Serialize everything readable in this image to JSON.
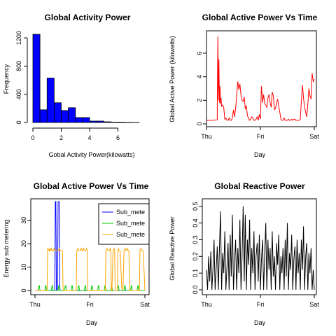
{
  "chart_data": [
    {
      "type": "bar",
      "title": "Global Activity Power",
      "xlabel": "Gobal Activity Power(kilowatts)",
      "ylabel": "Frequency",
      "xlim": [
        0,
        8
      ],
      "ylim": [
        0,
        1300
      ],
      "bin_width": 0.5,
      "bins_start": [
        0,
        0.5,
        1,
        1.5,
        2,
        2.5,
        3,
        3.5,
        4,
        4.5,
        5,
        5.5,
        6,
        6.5,
        7
      ],
      "values": [
        1250,
        180,
        630,
        280,
        170,
        210,
        70,
        70,
        20,
        20,
        10,
        5,
        5,
        3,
        2
      ],
      "x_ticks": [
        0,
        2,
        4,
        6
      ],
      "y_ticks": [
        0,
        400,
        800,
        1200
      ],
      "color": "#0000ff"
    },
    {
      "type": "line",
      "title": "Global Active Power Vs Time",
      "xlabel": "Day",
      "ylabel": "Global Active Power (kilowatts)",
      "x_tick_labels": [
        "Thu",
        "Fri",
        "Sat"
      ],
      "y_ticks": [
        0,
        2,
        4,
        6
      ],
      "ylim": [
        0,
        7.6
      ],
      "color": "#ff0000",
      "series": [
        {
          "x": [
            0.0,
            0.1,
            0.2,
            0.2,
            0.21,
            0.22,
            0.23,
            0.24,
            0.25,
            0.26,
            0.27,
            0.28,
            0.3,
            0.32,
            0.34,
            0.36,
            0.38,
            0.4,
            0.42,
            0.44,
            0.46,
            0.48,
            0.5,
            0.52,
            0.54,
            0.56,
            0.58,
            0.6,
            0.62,
            0.64,
            0.66,
            0.68,
            0.7,
            0.72,
            0.74,
            0.76,
            0.78,
            0.8,
            0.82,
            0.84,
            0.86,
            0.88,
            0.9,
            0.92,
            0.94,
            0.96,
            0.98,
            1.0,
            1.02,
            1.04,
            1.06,
            1.08,
            1.1,
            1.12,
            1.14,
            1.16,
            1.18,
            1.2,
            1.22,
            1.24,
            1.26,
            1.28,
            1.3,
            1.32,
            1.34,
            1.36,
            1.38,
            1.4,
            1.42,
            1.44,
            1.46,
            1.48,
            1.5,
            1.52,
            1.54,
            1.56,
            1.58,
            1.6,
            1.62,
            1.64,
            1.66,
            1.68,
            1.7,
            1.72,
            1.74,
            1.76,
            1.78,
            1.8,
            1.82,
            1.84,
            1.86,
            1.88,
            1.9,
            1.92,
            1.94,
            1.96,
            1.98,
            2.0
          ],
          "y": [
            0.3,
            0.3,
            0.35,
            1.5,
            7.4,
            2.0,
            5.5,
            1.8,
            3.2,
            1.7,
            2.2,
            1.5,
            1.6,
            1.4,
            0.4,
            0.5,
            0.3,
            0.3,
            0.5,
            0.3,
            0.3,
            0.5,
            1.2,
            0.6,
            1.3,
            2.4,
            3.6,
            2.9,
            3.4,
            2.4,
            2.0,
            1.9,
            2.3,
            1.3,
            1.5,
            0.7,
            0.5,
            0.3,
            0.4,
            0.6,
            0.5,
            0.3,
            0.3,
            0.4,
            0.6,
            0.3,
            0.8,
            0.4,
            3.2,
            1.8,
            2.5,
            1.7,
            1.6,
            1.4,
            2.2,
            2.5,
            1.8,
            1.4,
            2.7,
            2.4,
            1.2,
            1.3,
            1.8,
            2.1,
            1.5,
            1.0,
            0.4,
            0.3,
            0.3,
            0.5,
            0.3,
            0.3,
            0.3,
            0.4,
            0.3,
            0.3,
            0.4,
            0.3,
            0.4,
            0.4,
            0.3,
            0.3,
            0.3,
            0.3,
            0.4,
            1.9,
            3.3,
            2.2,
            1.4,
            1.0,
            0.6,
            1.7,
            3.0,
            2.4,
            2.1,
            4.3,
            3.6,
            3.8
          ]
        }
      ]
    },
    {
      "type": "line",
      "title": "Global Active Power Vs Time",
      "xlabel": "Day",
      "ylabel": "Energy sub metering",
      "x_tick_labels": [
        "Thu",
        "Fri",
        "Sat"
      ],
      "y_ticks": [
        0,
        10,
        20,
        30
      ],
      "ylim": [
        0,
        38
      ],
      "legend_position": "top-right",
      "series": [
        {
          "name": "Sub_mete",
          "color": "#0000ff",
          "x": [
            0.0,
            0.36,
            0.37,
            0.38,
            0.39,
            0.4,
            0.41,
            0.42,
            0.43,
            0.44,
            0.45,
            0.46,
            0.47,
            2.0
          ],
          "y": [
            0,
            0,
            38,
            38,
            0,
            0,
            1,
            38,
            38,
            38,
            1,
            0,
            0,
            0
          ]
        },
        {
          "name": "Sub_mete",
          "color": "#00cc00",
          "x": [
            0.0,
            0.06,
            0.07,
            0.08,
            0.09,
            0.18,
            0.19,
            0.2,
            0.21,
            0.3,
            0.31,
            0.32,
            0.33,
            0.42,
            0.43,
            0.44,
            0.45,
            0.54,
            0.55,
            0.56,
            0.57,
            0.66,
            0.67,
            0.68,
            0.69,
            0.78,
            0.79,
            0.8,
            0.81,
            0.9,
            0.91,
            0.92,
            0.93,
            1.02,
            1.03,
            1.04,
            1.05,
            1.14,
            1.15,
            1.16,
            1.17,
            1.26,
            1.27,
            1.28,
            1.29,
            1.38,
            1.39,
            1.4,
            1.41,
            1.5,
            1.51,
            1.52,
            1.53,
            1.62,
            1.63,
            1.64,
            1.65,
            1.74,
            1.75,
            1.76,
            1.77,
            1.86,
            1.87,
            1.88,
            1.89,
            1.98,
            2.0
          ],
          "y": [
            0,
            0,
            2,
            2,
            0,
            0,
            2,
            2,
            0,
            0,
            2,
            2,
            0,
            0,
            2,
            2,
            0,
            0,
            2,
            2,
            0,
            0,
            2,
            2,
            0,
            0,
            2,
            2,
            0,
            0,
            2,
            2,
            0,
            0,
            2,
            2,
            0,
            0,
            2,
            2,
            0,
            0,
            2,
            2,
            0,
            0,
            2,
            2,
            0,
            0,
            2,
            2,
            0,
            0,
            2,
            2,
            0,
            0,
            2,
            2,
            0,
            0,
            2,
            2,
            0,
            0,
            0
          ]
        },
        {
          "name": "Sub_mete",
          "color": "#ffa500",
          "x": [
            0.0,
            0.22,
            0.23,
            0.26,
            0.27,
            0.28,
            0.3,
            0.31,
            0.33,
            0.35,
            0.36,
            0.38,
            0.4,
            0.42,
            0.44,
            0.46,
            0.48,
            0.5,
            0.51,
            0.52,
            0.75,
            0.76,
            0.78,
            0.8,
            0.82,
            0.84,
            0.86,
            0.88,
            0.9,
            0.92,
            0.94,
            0.95,
            0.96,
            1.28,
            1.29,
            1.31,
            1.33,
            1.35,
            1.37,
            1.38,
            1.39,
            1.4,
            1.42,
            1.44,
            1.45,
            1.46,
            1.5,
            1.51,
            1.52,
            1.53,
            1.55,
            1.58,
            1.6,
            1.62,
            1.64,
            1.66,
            1.68,
            1.7,
            1.71,
            1.72,
            1.9,
            1.91,
            1.93,
            1.95,
            1.97,
            2.0
          ],
          "y": [
            0,
            0,
            18,
            17,
            18,
            17,
            18,
            17,
            17,
            18,
            17,
            17,
            17,
            17,
            18,
            17,
            17,
            17,
            1,
            0,
            0,
            17,
            18,
            17,
            17,
            18,
            17,
            18,
            17,
            17,
            18,
            17,
            0,
            0,
            17,
            18,
            17,
            17,
            18,
            17,
            0,
            0,
            17,
            18,
            17,
            0,
            0,
            17,
            18,
            17,
            17,
            1,
            0,
            17,
            18,
            17,
            18,
            17,
            17,
            0,
            0,
            17,
            18,
            17,
            17,
            0
          ]
        }
      ]
    },
    {
      "type": "line",
      "title": "Global Reactive Power",
      "xlabel": "Day",
      "ylabel": "Global Reactive Power",
      "x_tick_labels": [
        "Thu",
        "Fri",
        "Sat"
      ],
      "y_ticks": [
        0.0,
        0.1,
        0.2,
        0.3,
        0.4,
        0.5
      ],
      "ylim": [
        0,
        0.52
      ],
      "color": "#000000",
      "series": [
        {
          "x": [
            0.0,
            0.02,
            0.04,
            0.06,
            0.08,
            0.1,
            0.12,
            0.14,
            0.16,
            0.18,
            0.2,
            0.22,
            0.24,
            0.26,
            0.28,
            0.3,
            0.32,
            0.34,
            0.36,
            0.38,
            0.4,
            0.42,
            0.44,
            0.46,
            0.48,
            0.5,
            0.52,
            0.54,
            0.56,
            0.58,
            0.6,
            0.62,
            0.64,
            0.66,
            0.68,
            0.7,
            0.72,
            0.74,
            0.76,
            0.78,
            0.8,
            0.82,
            0.84,
            0.86,
            0.88,
            0.9,
            0.92,
            0.94,
            0.96,
            0.98,
            1.0,
            1.02,
            1.04,
            1.06,
            1.08,
            1.1,
            1.12,
            1.14,
            1.16,
            1.18,
            1.2,
            1.22,
            1.24,
            1.26,
            1.28,
            1.3,
            1.32,
            1.34,
            1.36,
            1.38,
            1.4,
            1.42,
            1.44,
            1.46,
            1.48,
            1.5,
            1.52,
            1.54,
            1.56,
            1.58,
            1.6,
            1.62,
            1.64,
            1.66,
            1.68,
            1.7,
            1.72,
            1.74,
            1.76,
            1.78,
            1.8,
            1.82,
            1.84,
            1.86,
            1.88,
            1.9,
            1.92,
            1.94,
            1.96,
            1.98,
            2.0
          ],
          "y": [
            0.12,
            0.0,
            0.2,
            0.05,
            0.23,
            0.0,
            0.12,
            0.3,
            0.0,
            0.13,
            0.26,
            0.0,
            0.25,
            0.47,
            0.0,
            0.22,
            0.1,
            0.35,
            0.0,
            0.14,
            0.28,
            0.0,
            0.33,
            0.08,
            0.45,
            0.0,
            0.16,
            0.3,
            0.0,
            0.25,
            0.1,
            0.42,
            0.0,
            0.2,
            0.5,
            0.05,
            0.45,
            0.0,
            0.3,
            0.15,
            0.42,
            0.0,
            0.25,
            0.1,
            0.35,
            0.0,
            0.2,
            0.28,
            0.05,
            0.33,
            0.0,
            0.18,
            0.3,
            0.0,
            0.22,
            0.4,
            0.0,
            0.3,
            0.12,
            0.25,
            0.0,
            0.35,
            0.08,
            0.2,
            0.0,
            0.28,
            0.15,
            0.33,
            0.0,
            0.2,
            0.1,
            0.25,
            0.0,
            0.3,
            0.08,
            0.4,
            0.0,
            0.22,
            0.12,
            0.33,
            0.0,
            0.18,
            0.26,
            0.0,
            0.3,
            0.1,
            0.22,
            0.0,
            0.3,
            0.12,
            0.38,
            0.0,
            0.2,
            0.28,
            0.0,
            0.22,
            0.1,
            0.25,
            0.0,
            0.12,
            0.0
          ]
        }
      ]
    }
  ]
}
